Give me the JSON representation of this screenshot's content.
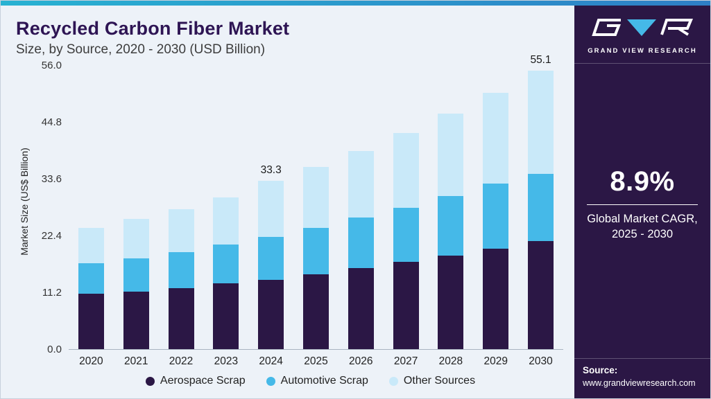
{
  "header": {
    "title": "Recycled Carbon Fiber Market",
    "subtitle": "Size, by Source, 2020 - 2030 (USD Billion)"
  },
  "chart_data": {
    "type": "bar",
    "stacked": true,
    "title": "Recycled Carbon Fiber Market Size, by Source, 2020 - 2030 (USD Billion)",
    "categories": [
      "2020",
      "2021",
      "2022",
      "2023",
      "2024",
      "2025",
      "2026",
      "2027",
      "2028",
      "2029",
      "2030"
    ],
    "series": [
      {
        "name": "Aerospace Scrap",
        "color": "#2b1745",
        "values": [
          10.9,
          11.3,
          12.1,
          13.0,
          13.7,
          14.8,
          16.0,
          17.2,
          18.5,
          19.9,
          21.4
        ]
      },
      {
        "name": "Automotive Scrap",
        "color": "#45b9e8",
        "values": [
          6.1,
          6.6,
          7.1,
          7.7,
          8.5,
          9.2,
          10.0,
          10.8,
          11.8,
          12.8,
          13.3
        ]
      },
      {
        "name": "Other Sources",
        "color": "#c9e9f9",
        "values": [
          7.0,
          7.8,
          8.5,
          9.3,
          11.1,
          12.0,
          13.2,
          14.7,
          16.2,
          17.9,
          20.4
        ]
      }
    ],
    "totals": [
      24.0,
      25.7,
      27.7,
      30.0,
      33.3,
      36.0,
      39.2,
      42.7,
      46.5,
      50.6,
      55.1
    ],
    "annotations": {
      "2024": "33.3",
      "2030": "55.1"
    },
    "xlabel": "",
    "ylabel": "Market Size (US$ Billion)",
    "yticks": [
      0.0,
      11.2,
      22.4,
      33.6,
      44.8,
      56.0
    ],
    "ylim": [
      0,
      56
    ],
    "grid": false,
    "legend_position": "bottom"
  },
  "legend": [
    {
      "label": "Aerospace Scrap",
      "color": "#2b1745"
    },
    {
      "label": "Automotive Scrap",
      "color": "#45b9e8"
    },
    {
      "label": "Other Sources",
      "color": "#c9e9f9"
    }
  ],
  "sidebar": {
    "brand": "GRAND VIEW RESEARCH",
    "cagr_value": "8.9%",
    "cagr_label_line1": "Global Market CAGR,",
    "cagr_label_line2": "2025 - 2030",
    "source_label": "Source:",
    "source_url": "www.grandviewresearch.com"
  },
  "colors": {
    "accent_left": "#28b2d2",
    "accent_right": "#2e7fc6",
    "sidebar_bg": "#2b1745",
    "panel_bg": "#edf2f8",
    "title_text": "#2e1554"
  }
}
